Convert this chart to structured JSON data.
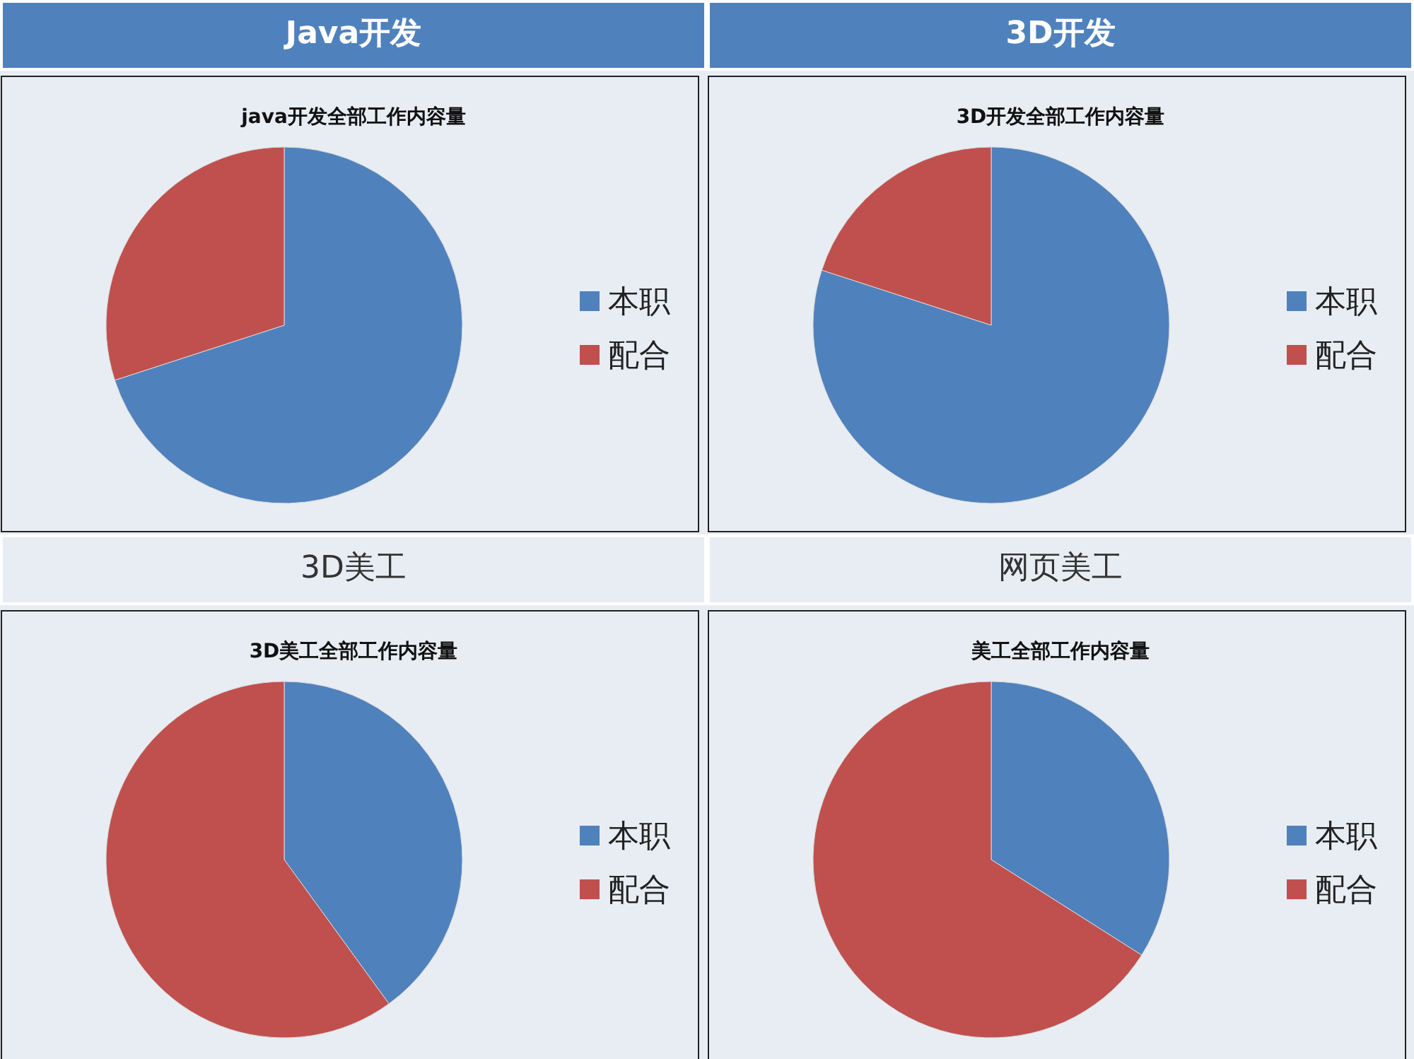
{
  "chart_data": [
    {
      "type": "pie",
      "subtitle": "Java开发",
      "title": "java开发全部工作内容量",
      "categories": [
        "本职",
        "配合"
      ],
      "values": [
        70,
        30
      ],
      "colors": [
        "#4f81bd",
        "#c0504d"
      ],
      "legend": "right"
    },
    {
      "type": "pie",
      "subtitle": "3D开发",
      "title": "3D开发全部工作内容量",
      "categories": [
        "本职",
        "配合"
      ],
      "values": [
        80,
        20
      ],
      "colors": [
        "#4f81bd",
        "#c0504d"
      ],
      "legend": "right"
    },
    {
      "type": "pie",
      "subtitle": "3D美工",
      "title": "3D美工全部工作内容量",
      "categories": [
        "本职",
        "配合"
      ],
      "values": [
        40,
        60
      ],
      "colors": [
        "#4f81bd",
        "#c0504d"
      ],
      "legend": "right"
    },
    {
      "type": "pie",
      "subtitle": "网页美工",
      "title": "美工全部工作内容量",
      "categories": [
        "本职",
        "配合"
      ],
      "values": [
        34,
        66
      ],
      "colors": [
        "#4f81bd",
        "#c0504d"
      ],
      "legend": "right"
    }
  ]
}
